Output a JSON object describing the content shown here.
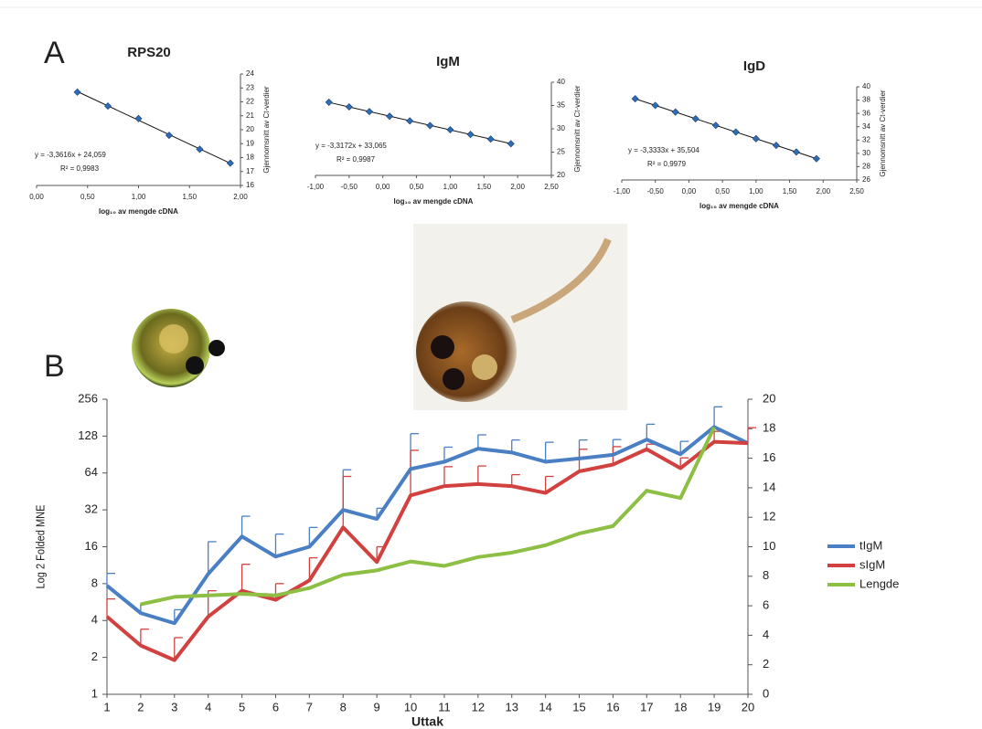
{
  "panel_labels": [
    "A",
    "B"
  ],
  "chart_data": [
    {
      "type": "scatter",
      "title": "RPS20",
      "color": "#2e6db4",
      "trendline": true,
      "equation": "y = -3,3616x + 24,059",
      "r_squared": "R² = 0,9983",
      "xlabel": "log₁₀ av mengde cDNA",
      "ylabel": "Gjennomsnitt av Ct-verdier",
      "x": [
        0.4,
        0.7,
        1.0,
        1.3,
        1.6,
        1.9
      ],
      "values": [
        22.7,
        21.7,
        20.8,
        19.6,
        18.6,
        17.6
      ],
      "xlim": [
        0,
        2
      ],
      "xticks": [
        {
          "value": 0,
          "label": "0,00"
        },
        {
          "value": 0.5,
          "label": "0,50"
        },
        {
          "value": 1,
          "label": "1,00"
        },
        {
          "value": 1.5,
          "label": "1,50"
        },
        {
          "value": 2,
          "label": "2,00"
        }
      ],
      "ylim": [
        16,
        24
      ],
      "yticks": [
        16,
        17,
        18,
        19,
        20,
        21,
        22,
        23,
        24
      ]
    },
    {
      "type": "scatter",
      "title": "IgM",
      "color": "#2e6db4",
      "trendline": true,
      "equation": "y = -3,3172x + 33,065",
      "r_squared": "R² = 0,9987",
      "xlabel": "log₁₀ av mengde cDNA",
      "ylabel": "Gjennomsnitt av Ct-verdier",
      "x": [
        -0.8,
        -0.5,
        -0.2,
        0.1,
        0.4,
        0.7,
        1.0,
        1.3,
        1.6,
        1.9
      ],
      "values": [
        35.7,
        34.7,
        33.7,
        32.7,
        31.7,
        30.7,
        29.8,
        28.8,
        27.8,
        26.8
      ],
      "xlim": [
        -1,
        2.5
      ],
      "xticks": [
        {
          "value": -1,
          "label": "-1,00"
        },
        {
          "value": -0.5,
          "label": "-0,50"
        },
        {
          "value": 0,
          "label": "0,00"
        },
        {
          "value": 0.5,
          "label": "0,50"
        },
        {
          "value": 1,
          "label": "1,00"
        },
        {
          "value": 1.5,
          "label": "1,50"
        },
        {
          "value": 2,
          "label": "2,00"
        },
        {
          "value": 2.5,
          "label": "2,50"
        }
      ],
      "ylim": [
        20,
        40
      ],
      "yticks": [
        20,
        25,
        30,
        35,
        40
      ]
    },
    {
      "type": "scatter",
      "title": "IgD",
      "color": "#2e6db4",
      "trendline": true,
      "equation": "y = -3,3333x + 35,504",
      "r_squared": "R² = 0,9979",
      "xlabel": "log₁₀ av mengde cDNA",
      "ylabel": "Gjennomsnitt av Ct-verdier",
      "x": [
        -0.8,
        -0.5,
        -0.2,
        0.1,
        0.4,
        0.7,
        1.0,
        1.3,
        1.6,
        1.9
      ],
      "values": [
        38.2,
        37.2,
        36.2,
        35.2,
        34.2,
        33.2,
        32.2,
        31.2,
        30.2,
        29.2
      ],
      "xlim": [
        -1,
        2.5
      ],
      "xticks": [
        {
          "value": -1,
          "label": "-1,00"
        },
        {
          "value": -0.5,
          "label": "-0,50"
        },
        {
          "value": 0,
          "label": "0,00"
        },
        {
          "value": 0.5,
          "label": "0,50"
        },
        {
          "value": 1,
          "label": "1,00"
        },
        {
          "value": 1.5,
          "label": "1,50"
        },
        {
          "value": 2,
          "label": "2,00"
        },
        {
          "value": 2.5,
          "label": "2,50"
        }
      ],
      "ylim": [
        26,
        40
      ],
      "yticks": [
        26,
        28,
        30,
        32,
        34,
        36,
        38,
        40
      ]
    },
    {
      "type": "line",
      "xlabel": "Uttak",
      "ylabel": "Log 2 Folded MNE",
      "categories": [
        "1",
        "2",
        "3",
        "4",
        "5",
        "6",
        "7",
        "8",
        "9",
        "10",
        "11",
        "12",
        "13",
        "14",
        "15",
        "16",
        "17",
        "18",
        "19",
        "20"
      ],
      "log_scale": true,
      "ylim": [
        1,
        256
      ],
      "yticks": [
        1,
        2,
        4,
        8,
        16,
        32,
        64,
        128,
        256
      ],
      "y2lim": [
        0,
        20
      ],
      "y2ticks": [
        0,
        2,
        4,
        6,
        8,
        10,
        12,
        14,
        16,
        18,
        20
      ],
      "legend": "right",
      "series": [
        {
          "name": "tIgM",
          "color": "#4a7fc4",
          "values": [
            7.7,
            4.6,
            3.8,
            9.6,
            19.4,
            13.3,
            16,
            32,
            27,
            69,
            79,
            101,
            94,
            79,
            84,
            90,
            120,
            91,
            152,
            112
          ],
          "errors": [
            2,
            0.9,
            1.1,
            8,
            9,
            7,
            7,
            36,
            6,
            65,
            25,
            30,
            25,
            35,
            35,
            30,
            40,
            25,
            70,
            null
          ]
        },
        {
          "name": "sIgM",
          "color": "#d0413f",
          "values": [
            4.3,
            2.5,
            1.9,
            4.3,
            7,
            5.9,
            8.5,
            23,
            12,
            42,
            50,
            52,
            50,
            44,
            66,
            75,
            100,
            70,
            115,
            112
          ],
          "errors": [
            1.7,
            0.9,
            1,
            2.7,
            4.5,
            2.1,
            4.5,
            37,
            4,
            56,
            22,
            21,
            12,
            16,
            34,
            30,
            10,
            15,
            25,
            38
          ]
        },
        {
          "name": "Lengde",
          "color": "#8cbf44",
          "axis": "y2",
          "values": [
            null,
            6.1,
            6.6,
            6.7,
            6.8,
            6.7,
            7.2,
            8.1,
            8.4,
            9.0,
            8.7,
            9.3,
            9.6,
            10.1,
            10.9,
            11.4,
            13.8,
            13.3,
            18.1,
            null
          ]
        }
      ]
    }
  ]
}
